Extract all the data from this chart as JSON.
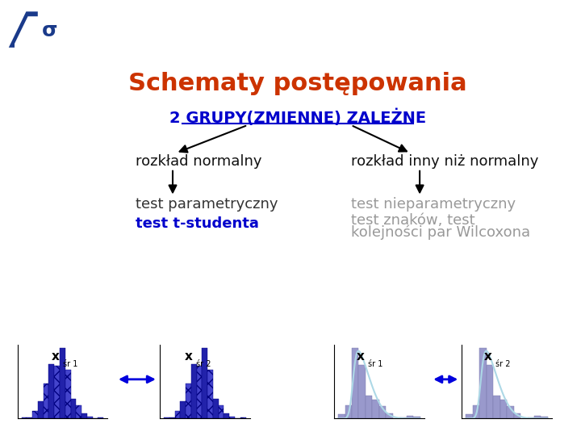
{
  "title": "Schematy postępowania",
  "title_color": "#CC3300",
  "bg_color": "#FFFFFF",
  "subtitle": "2 GRUPY(ZMIENNE) ZALEŻNE",
  "subtitle_color": "#0000CC",
  "left_branch_label": "rozkład normalny",
  "right_branch_label": "rozkład inny niż normalny",
  "left_test1": "test parametryczny",
  "left_test1_color": "#333333",
  "left_test2": "test t-studenta",
  "left_test2_color": "#0000CC",
  "right_test1": "test nieparametryczny",
  "right_test1_color": "#999999",
  "right_test2_line1": "test znaków, test",
  "right_test2_line2": "kolejności par Wilcoxona",
  "right_test2_color": "#999999",
  "arrow_color": "#000000",
  "logo_color": "#1a3a8a"
}
